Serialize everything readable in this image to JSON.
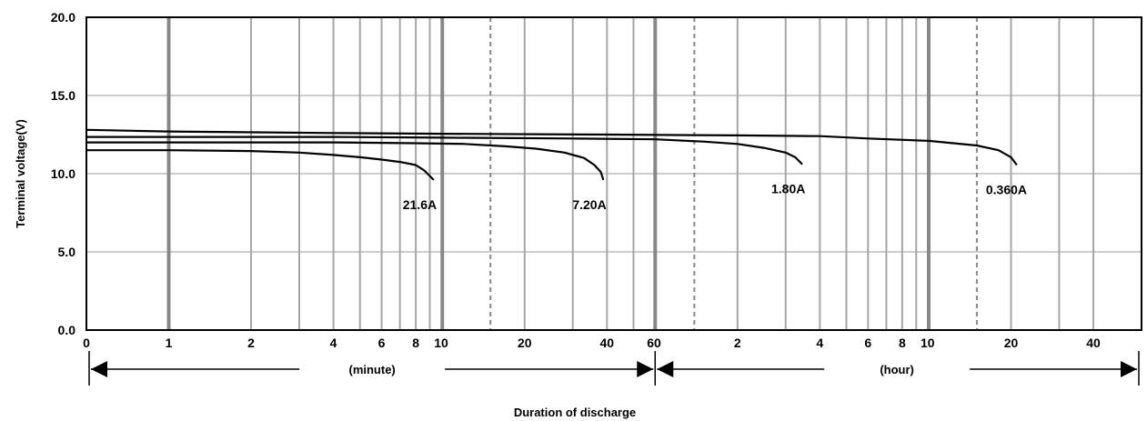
{
  "chart_data": {
    "type": "line",
    "title": "",
    "xlabel": "Duration of discharge",
    "ylabel": "Terminal voltage(V)",
    "ylim": [
      0,
      20
    ],
    "y_ticks": [
      "0.0",
      "5.0",
      "10.0",
      "15.0",
      "20.0"
    ],
    "x_axis_scale": "log",
    "x_units_internal": "minutes",
    "xlim_minutes": [
      0.5,
      3600
    ],
    "x_ticks": [
      {
        "label": "0",
        "minutes": 0.5
      },
      {
        "label": "1",
        "minutes": 1
      },
      {
        "label": "2",
        "minutes": 2
      },
      {
        "label": "4",
        "minutes": 4
      },
      {
        "label": "6",
        "minutes": 6
      },
      {
        "label": "8",
        "minutes": 8
      },
      {
        "label": "10",
        "minutes": 10
      },
      {
        "label": "20",
        "minutes": 20
      },
      {
        "label": "40",
        "minutes": 40
      },
      {
        "label": "60",
        "minutes": 60
      },
      {
        "label": "2",
        "minutes": 120
      },
      {
        "label": "4",
        "minutes": 240
      },
      {
        "label": "6",
        "minutes": 360
      },
      {
        "label": "8",
        "minutes": 480
      },
      {
        "label": "10",
        "minutes": 600
      },
      {
        "label": "20",
        "minutes": 1200
      },
      {
        "label": "40",
        "minutes": 2400
      }
    ],
    "grid": true,
    "unit_sections": [
      {
        "label": "(minute)",
        "from_minutes": 0.5,
        "to_minutes": 60
      },
      {
        "label": "(hour)",
        "from_minutes": 60,
        "to_minutes": 3600
      }
    ],
    "series": [
      {
        "name": "21.6A",
        "points": [
          [
            0.5,
            11.5
          ],
          [
            1,
            11.5
          ],
          [
            2,
            11.45
          ],
          [
            3,
            11.35
          ],
          [
            4,
            11.2
          ],
          [
            5,
            11.05
          ],
          [
            6,
            10.9
          ],
          [
            7,
            10.75
          ],
          [
            8,
            10.55
          ],
          [
            8.6,
            10.2
          ],
          [
            9.3,
            9.6
          ]
        ]
      },
      {
        "name": "7.20A",
        "points": [
          [
            0.5,
            12.0
          ],
          [
            1,
            12.0
          ],
          [
            2,
            12.0
          ],
          [
            4,
            12.0
          ],
          [
            8,
            11.95
          ],
          [
            12,
            11.9
          ],
          [
            17,
            11.75
          ],
          [
            22,
            11.6
          ],
          [
            28,
            11.35
          ],
          [
            33,
            11.0
          ],
          [
            36,
            10.55
          ],
          [
            38,
            10.1
          ],
          [
            38.8,
            9.6
          ]
        ]
      },
      {
        "name": "1.80A",
        "points": [
          [
            0.5,
            12.35
          ],
          [
            1,
            12.35
          ],
          [
            4,
            12.35
          ],
          [
            10,
            12.3
          ],
          [
            30,
            12.25
          ],
          [
            60,
            12.2
          ],
          [
            90,
            12.05
          ],
          [
            120,
            11.9
          ],
          [
            150,
            11.65
          ],
          [
            180,
            11.35
          ],
          [
            195,
            11.05
          ],
          [
            207,
            10.6
          ]
        ]
      },
      {
        "name": "0.360A",
        "points": [
          [
            0.5,
            12.8
          ],
          [
            1,
            12.7
          ],
          [
            4,
            12.6
          ],
          [
            10,
            12.55
          ],
          [
            40,
            12.5
          ],
          [
            120,
            12.45
          ],
          [
            240,
            12.4
          ],
          [
            360,
            12.25
          ],
          [
            600,
            12.1
          ],
          [
            900,
            11.8
          ],
          [
            1080,
            11.5
          ],
          [
            1200,
            11.05
          ],
          [
            1260,
            10.55
          ]
        ]
      }
    ]
  }
}
